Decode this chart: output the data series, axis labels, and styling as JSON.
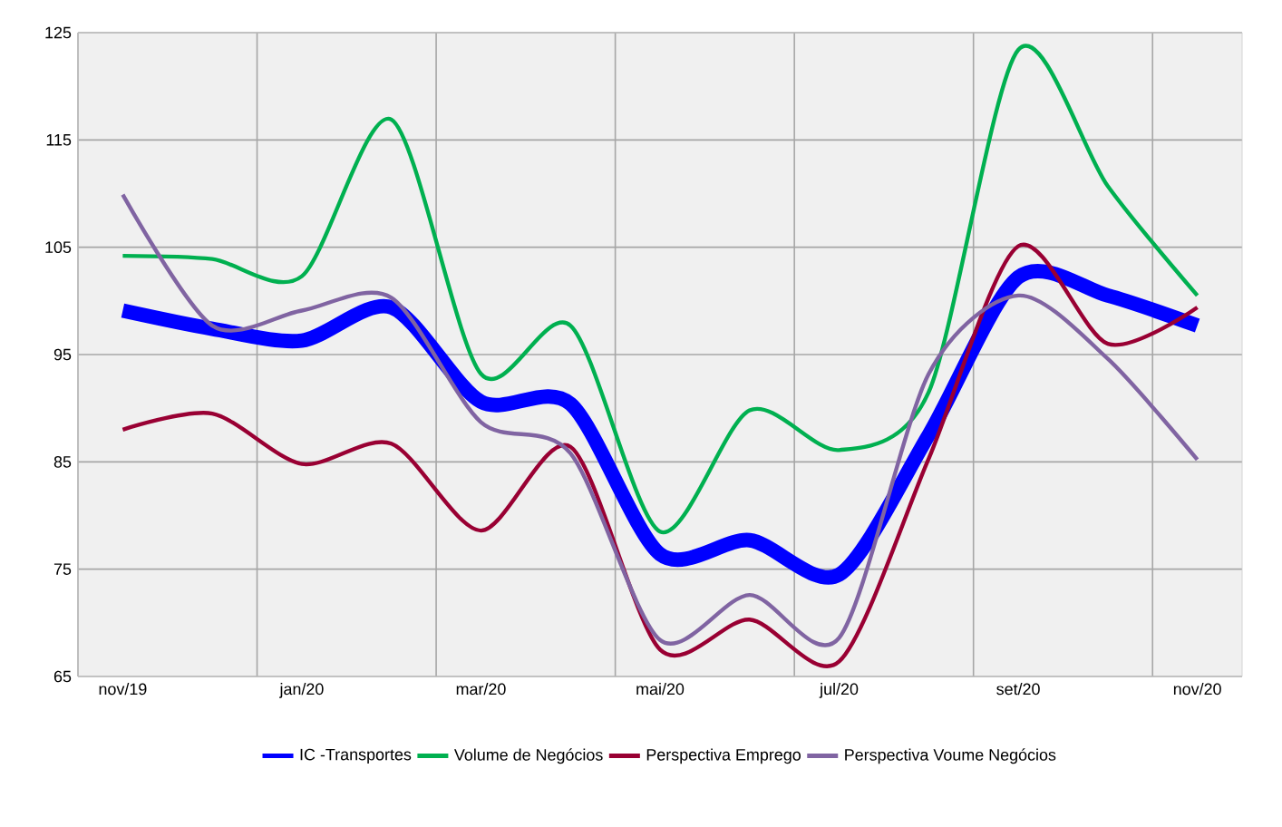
{
  "chart_data": {
    "type": "line",
    "categories": [
      "nov/19",
      null,
      "jan/20",
      null,
      "mar/20",
      null,
      "mai/20",
      null,
      "jul/20",
      null,
      "set/20",
      null,
      "nov/20"
    ],
    "series": [
      {
        "name": "IC -Transportes",
        "color": "#0000ff",
        "values": [
          99.1,
          97.4,
          96.3,
          99.4,
          90.6,
          90.4,
          76.4,
          77.7,
          74.5,
          87.5,
          102.2,
          100.5,
          97.7
        ]
      },
      {
        "name": "Volume de Negócios",
        "color": "#00b050",
        "values": [
          104.2,
          103.9,
          102.3,
          116.9,
          93.2,
          97.7,
          78.5,
          89.8,
          86.1,
          91.5,
          123.4,
          110.7,
          100.5
        ]
      },
      {
        "name": "Perspectiva Emprego",
        "color": "#990033",
        "values": [
          88.0,
          89.5,
          84.8,
          86.7,
          78.6,
          86.4,
          67.5,
          70.3,
          66.4,
          85.3,
          105.1,
          96.0,
          99.4
        ]
      },
      {
        "name": "Perspectiva  Voume Negócios",
        "color": "#8064a2",
        "values": [
          109.9,
          97.7,
          99.1,
          100.3,
          88.7,
          85.8,
          68.4,
          72.6,
          68.6,
          93.2,
          100.5,
          94.6,
          85.2
        ]
      }
    ],
    "ylim": [
      65,
      125
    ],
    "yticks": [
      65,
      75,
      85,
      95,
      105,
      115,
      125
    ],
    "grid": true,
    "legend": "bottom",
    "marker": "none",
    "line_style": "solid"
  }
}
